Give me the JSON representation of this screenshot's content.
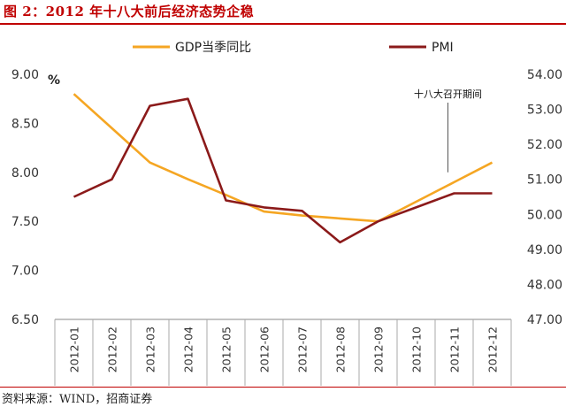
{
  "title": "图 2：2012 年十八大前后经济态势企稳",
  "source": "资料来源：WIND，招商证券",
  "chart_data": {
    "type": "line",
    "x": [
      "2012-01",
      "2012-02",
      "2012-03",
      "2012-04",
      "2012-05",
      "2012-06",
      "2012-07",
      "2012-08",
      "2012-09",
      "2012-10",
      "2012-11",
      "2012-12"
    ],
    "left_unit": "%",
    "y_left": {
      "min": 6.5,
      "max": 9.0,
      "ticks": [
        "6.50",
        "7.00",
        "7.50",
        "8.00",
        "8.50",
        "9.00"
      ]
    },
    "y_right": {
      "min": 47.0,
      "max": 54.0,
      "ticks": [
        "47.00",
        "48.00",
        "49.00",
        "50.00",
        "51.00",
        "52.00",
        "53.00",
        "54.00"
      ]
    },
    "series": [
      {
        "name": "GDP当季同比",
        "axis": "left",
        "color": "#f5a623",
        "values": [
          8.8,
          8.45,
          8.1,
          7.93,
          7.77,
          7.6,
          7.56,
          7.53,
          7.5,
          7.7,
          7.9,
          8.1
        ]
      },
      {
        "name": "PMI",
        "axis": "right",
        "color": "#8b1a1a",
        "values": [
          50.5,
          51.0,
          53.1,
          53.3,
          50.4,
          50.2,
          50.1,
          49.2,
          49.8,
          50.2,
          50.6,
          50.6
        ]
      }
    ],
    "annotation": {
      "text": "十八大召开期间",
      "x_index": 10.5,
      "value_right": 51.2
    },
    "legend_position": "top",
    "grid": false
  }
}
